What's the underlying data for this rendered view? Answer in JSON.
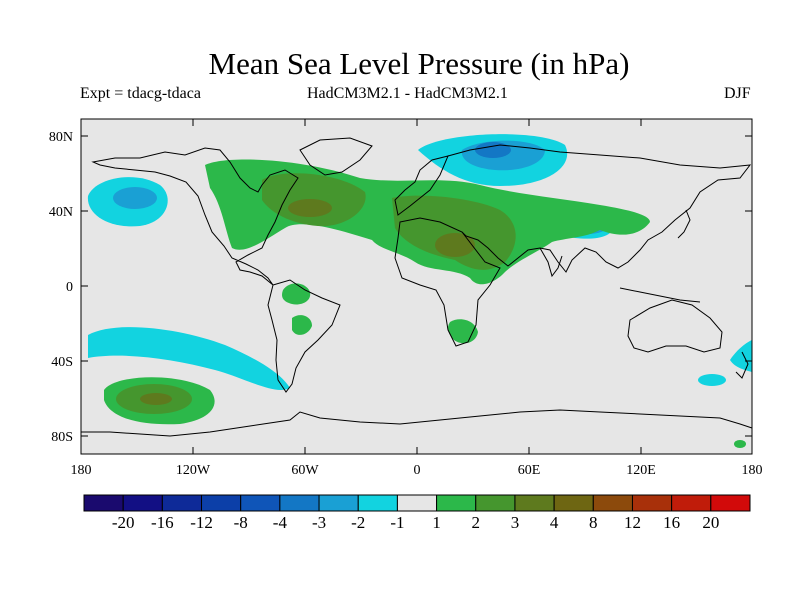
{
  "title": "Mean Sea Level Pressure (in hPa)",
  "subtitle": {
    "left": "Expt = tdacg-tdaca",
    "center": "HadCM3M2.1 - HadCM3M2.1",
    "right": "DJF"
  },
  "axes": {
    "lat_ticks": [
      "80N",
      "40N",
      "0",
      "40S",
      "80S"
    ],
    "lon_ticks": [
      "180",
      "120W",
      "60W",
      "0",
      "60E",
      "120E",
      "180"
    ]
  },
  "colorbar": {
    "labels": [
      "-20",
      "-16",
      "-12",
      "-8",
      "-4",
      "-3",
      "-2",
      "-1",
      "1",
      "2",
      "3",
      "4",
      "8",
      "12",
      "16",
      "20"
    ],
    "colors": [
      "#1a0a6e",
      "#120f84",
      "#0e2a98",
      "#0c3fa8",
      "#0f55b8",
      "#1377c5",
      "#1aa0d4",
      "#12d3e0",
      "#e6e6e6",
      "#2cb84a",
      "#45962e",
      "#5e7a1e",
      "#6e6612",
      "#8c4a0c",
      "#a8300a",
      "#c01c0a",
      "#d20a0a"
    ]
  },
  "colors": {
    "background": "#e6e6e6",
    "land_outline": "#000000"
  }
}
